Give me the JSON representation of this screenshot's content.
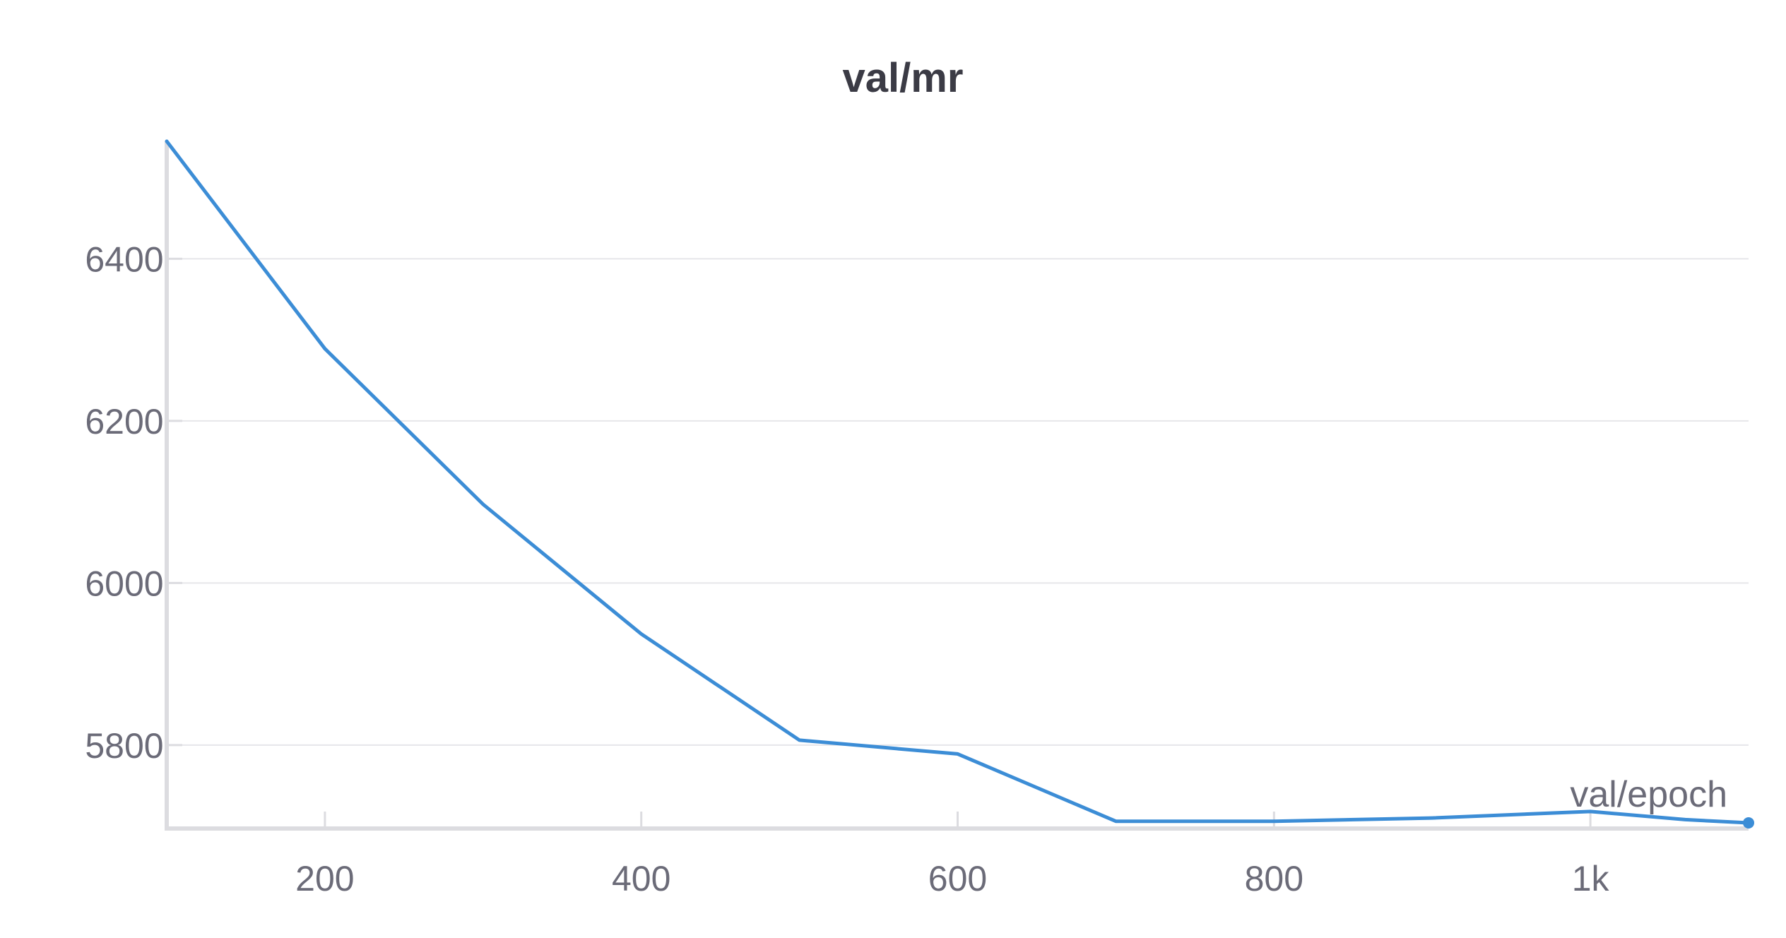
{
  "chart_data": {
    "type": "line",
    "title": "val/mr",
    "xlabel": "",
    "ylabel": "",
    "x_ticks": [
      200,
      400,
      600,
      800,
      1000
    ],
    "x_tick_labels": [
      "200",
      "400",
      "600",
      "800",
      "1k"
    ],
    "y_ticks": [
      5800,
      6000,
      6200,
      6400
    ],
    "y_tick_labels": [
      "5800",
      "6000",
      "6200",
      "6400"
    ],
    "xlim": [
      100,
      1100
    ],
    "ylim": [
      5697,
      6545
    ],
    "grid": true,
    "line_color": "#3c8dd6",
    "annotation": "val/epoch",
    "series": [
      {
        "x": [
          100,
          200,
          300,
          400,
          500,
          600,
          700,
          800,
          900,
          1000,
          1060,
          1100
        ],
        "y": [
          6545,
          6289,
          6097,
          5937,
          5806,
          5789,
          5706,
          5706,
          5710,
          5718,
          5708,
          5704
        ]
      }
    ]
  }
}
